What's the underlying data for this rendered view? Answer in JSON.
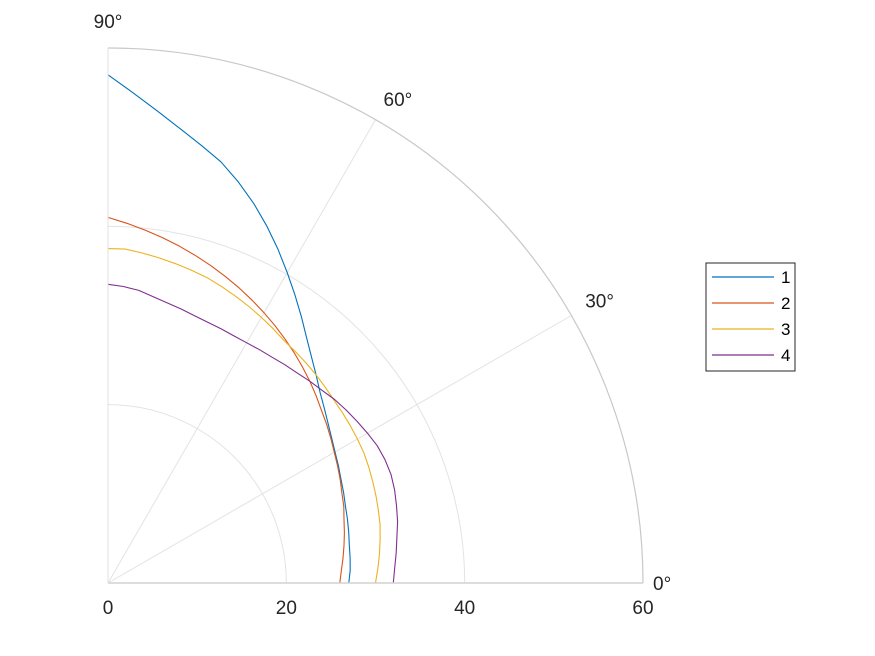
{
  "chart_data": {
    "type": "line",
    "coordinate_system": "polar",
    "sector_degrees": [
      0,
      90
    ],
    "rlim": [
      0,
      60
    ],
    "rticks": [
      "0",
      "20",
      "40",
      "60"
    ],
    "theta_ticks": [
      "0°",
      "30°",
      "60°",
      "90°"
    ],
    "grid": true,
    "legend_position": "right",
    "colors": [
      "#0072BD",
      "#D95319",
      "#EDB120",
      "#7E2F8E"
    ],
    "series": [
      {
        "name": "1",
        "theta_deg": [
          0,
          3,
          6,
          9,
          12,
          15,
          18,
          21,
          24,
          27,
          30,
          33,
          36,
          39,
          42,
          45,
          48,
          51,
          54,
          57,
          60,
          63,
          66,
          69,
          72,
          75,
          78,
          81,
          84,
          87,
          90
        ],
        "r": [
          27,
          27.2,
          27.3,
          27.4,
          27.6,
          27.8,
          28.0,
          28.3,
          28.6,
          29.0,
          29.4,
          29.9,
          30.5,
          31.2,
          32.0,
          33.0,
          34.1,
          35.4,
          36.9,
          38.5,
          40.2,
          42.0,
          43.8,
          45.6,
          47.3,
          48.9,
          50.2,
          51.6,
          53.2,
          55.0,
          57.0
        ]
      },
      {
        "name": "2",
        "theta_deg": [
          0,
          3,
          6,
          9,
          12,
          15,
          18,
          21,
          24,
          27,
          30,
          33,
          36,
          39,
          42,
          45,
          48,
          51,
          54,
          57,
          60,
          63,
          66,
          69,
          72,
          75,
          78,
          81,
          84,
          87,
          90
        ],
        "r": [
          26,
          26.2,
          26.5,
          26.8,
          27.1,
          27.4,
          27.8,
          28.1,
          28.5,
          28.9,
          29.3,
          29.8,
          30.3,
          30.8,
          31.4,
          32.0,
          32.6,
          33.2,
          33.8,
          34.4,
          35.0,
          35.6,
          36.2,
          36.8,
          37.4,
          38.0,
          38.6,
          39.2,
          39.8,
          40.4,
          41.0
        ]
      },
      {
        "name": "3",
        "theta_deg": [
          0,
          3,
          6,
          9,
          12,
          15,
          18,
          21,
          24,
          27,
          30,
          33,
          36,
          39,
          42,
          45,
          48,
          51,
          54,
          57,
          60,
          63,
          66,
          69,
          72,
          75,
          78,
          81,
          84,
          87,
          90
        ],
        "r": [
          30,
          30.3,
          30.6,
          30.9,
          31.2,
          31.4,
          31.6,
          31.8,
          32.0,
          32.2,
          32.3,
          32.4,
          32.5,
          32.6,
          32.8,
          33.0,
          33.2,
          33.4,
          33.6,
          34.0,
          34.4,
          34.8,
          35.2,
          35.6,
          36.0,
          36.3,
          36.6,
          36.9,
          37.2,
          37.5,
          37.5
        ]
      },
      {
        "name": "4",
        "theta_deg": [
          0,
          3,
          6,
          9,
          12,
          15,
          18,
          21,
          24,
          27,
          30,
          33,
          36,
          39,
          42,
          45,
          48,
          51,
          54,
          57,
          60,
          63,
          66,
          69,
          72,
          75,
          78,
          81,
          84,
          87,
          90
        ],
        "r": [
          32,
          32.2,
          32.5,
          32.8,
          33.2,
          33.5,
          33.8,
          34.0,
          34.0,
          33.9,
          33.6,
          33.3,
          33.0,
          32.7,
          32.3,
          32.0,
          31.7,
          31.5,
          31.3,
          31.2,
          31.1,
          31.1,
          31.2,
          31.3,
          31.5,
          31.8,
          32.1,
          32.5,
          33.0,
          33.3,
          33.5
        ]
      }
    ]
  }
}
